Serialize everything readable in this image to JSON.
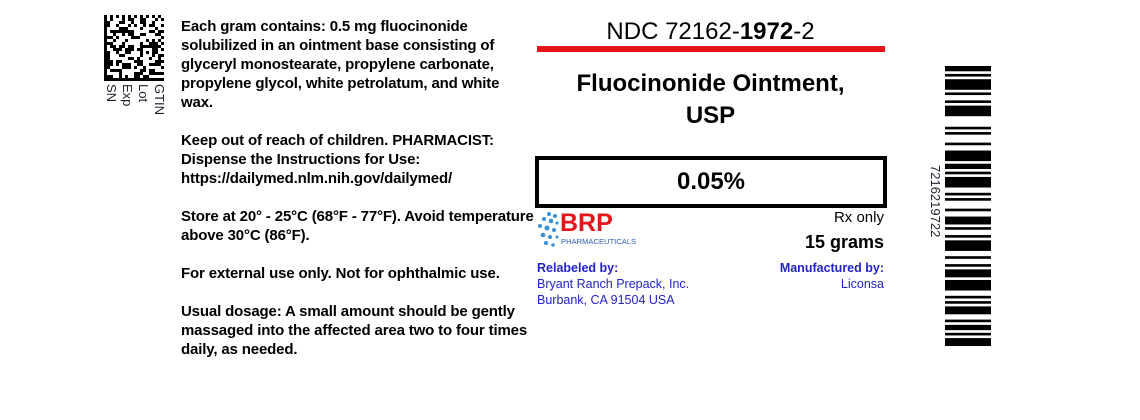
{
  "datamatrix_labels": [
    "GTIN",
    "Lot",
    "Exp",
    "SN"
  ],
  "left_paragraphs": [
    "Each gram contains: 0.5 mg fluocinonide solubilized in an ointment base consisting of glyceryl monostearate, propylene carbonate, propylene glycol, white petrolatum, and white wax.",
    "Keep out of reach of children. PHARMACIST: Dispense the Instructions for Use: https://dailymed.nlm.nih.gov/dailymed/",
    "Store at 20° - 25°C (68°F - 77°F). Avoid temperature above 30°C (86°F).",
    "For external use only. Not for ophthalmic use.",
    "Usual dosage: A small amount should be gently massaged into the affected area two to four times daily, as needed."
  ],
  "ndc": {
    "prefix": "NDC 72162-",
    "bold": "1972",
    "suffix": "-2"
  },
  "title_line1": "Fluocinonide Ointment,",
  "title_line2": "USP",
  "strength": "0.05%",
  "logo": {
    "name": "BRP",
    "sub": "PHARMACEUTICALS",
    "color": "#e8141b",
    "dots_color": "#3a8fd0"
  },
  "rx": "Rx only",
  "quantity": "15 grams",
  "relabeled": {
    "label": "Relabeled by:",
    "line1": "Bryant Ranch Prepack, Inc.",
    "line2": "Burbank, CA 91504 USA"
  },
  "manufactured": {
    "label": "Manufactured by:",
    "name": "Liconsa"
  },
  "barcode_number": "7216219722",
  "colors": {
    "red": "#e8141b",
    "blue": "#2222cc"
  }
}
